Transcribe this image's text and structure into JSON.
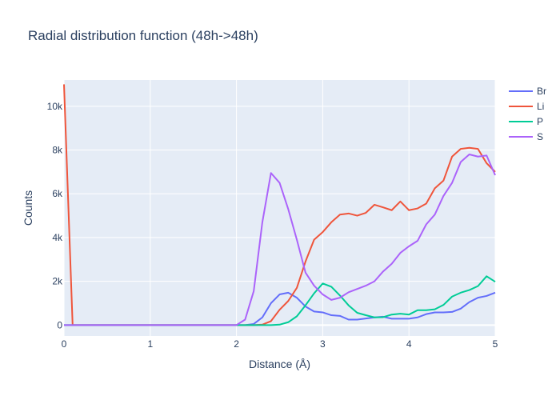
{
  "chart_data": {
    "type": "line",
    "title": "Radial distribution function (48h->48h)",
    "xlabel": "Distance (Å)",
    "ylabel": "Counts",
    "xlim": [
      0,
      5
    ],
    "ylim": [
      -500,
      11200
    ],
    "xticks": [
      0,
      1,
      2,
      3,
      4,
      5
    ],
    "xtick_labels": [
      "0",
      "1",
      "2",
      "3",
      "4",
      "5"
    ],
    "yticks": [
      0,
      2000,
      4000,
      6000,
      8000,
      10000
    ],
    "ytick_labels": [
      "0",
      "2k",
      "4k",
      "6k",
      "8k",
      "10k"
    ],
    "grid": true,
    "legend": "top-right",
    "x": [
      0,
      0.1,
      0.2,
      0.3,
      0.4,
      0.5,
      0.6,
      0.7,
      0.8,
      0.9,
      1.0,
      1.1,
      1.2,
      1.3,
      1.4,
      1.5,
      1.6,
      1.7,
      1.8,
      1.9,
      2.0,
      2.1,
      2.2,
      2.3,
      2.4,
      2.5,
      2.6,
      2.7,
      2.8,
      2.9,
      3.0,
      3.1,
      3.2,
      3.3,
      3.4,
      3.5,
      3.6,
      3.7,
      3.8,
      3.9,
      4.0,
      4.1,
      4.2,
      4.3,
      4.4,
      4.5,
      4.6,
      4.7,
      4.8,
      4.9,
      5.0
    ],
    "series": [
      {
        "name": "Br",
        "color": "#636efa",
        "values": [
          0,
          0,
          0,
          0,
          0,
          0,
          0,
          0,
          0,
          0,
          0,
          0,
          0,
          0,
          0,
          0,
          0,
          0,
          0,
          0,
          0,
          0,
          50,
          350,
          1000,
          1400,
          1480,
          1250,
          850,
          620,
          580,
          450,
          420,
          250,
          250,
          300,
          350,
          380,
          290,
          290,
          290,
          350,
          500,
          580,
          580,
          600,
          750,
          1050,
          1250,
          1330,
          1480
        ]
      },
      {
        "name": "Li",
        "color": "#EF553B",
        "values": [
          11000,
          0,
          0,
          0,
          0,
          0,
          0,
          0,
          0,
          0,
          0,
          0,
          0,
          0,
          0,
          0,
          0,
          0,
          0,
          0,
          0,
          0,
          0,
          20,
          180,
          700,
          1100,
          1700,
          2900,
          3900,
          4250,
          4700,
          5050,
          5100,
          5000,
          5130,
          5500,
          5380,
          5250,
          5650,
          5250,
          5330,
          5550,
          6250,
          6600,
          7700,
          8050,
          8100,
          8050,
          7400,
          7000
        ]
      },
      {
        "name": "P",
        "color": "#00cc96",
        "values": [
          0,
          0,
          0,
          0,
          0,
          0,
          0,
          0,
          0,
          0,
          0,
          0,
          0,
          0,
          0,
          0,
          0,
          0,
          0,
          0,
          0,
          0,
          0,
          0,
          0,
          20,
          130,
          400,
          900,
          1450,
          1900,
          1750,
          1350,
          900,
          560,
          450,
          350,
          360,
          480,
          520,
          480,
          680,
          680,
          720,
          920,
          1300,
          1480,
          1600,
          1780,
          2230,
          1980
        ]
      },
      {
        "name": "S",
        "color": "#ab63fa",
        "values": [
          0,
          0,
          0,
          0,
          0,
          0,
          0,
          0,
          0,
          0,
          0,
          0,
          0,
          0,
          0,
          0,
          0,
          0,
          0,
          0,
          0,
          250,
          1550,
          4700,
          6950,
          6500,
          5300,
          3900,
          2400,
          1800,
          1400,
          1150,
          1250,
          1500,
          1650,
          1800,
          2000,
          2450,
          2800,
          3300,
          3600,
          3850,
          4600,
          5050,
          5900,
          6500,
          7450,
          7800,
          7700,
          7750,
          6850
        ]
      }
    ]
  }
}
